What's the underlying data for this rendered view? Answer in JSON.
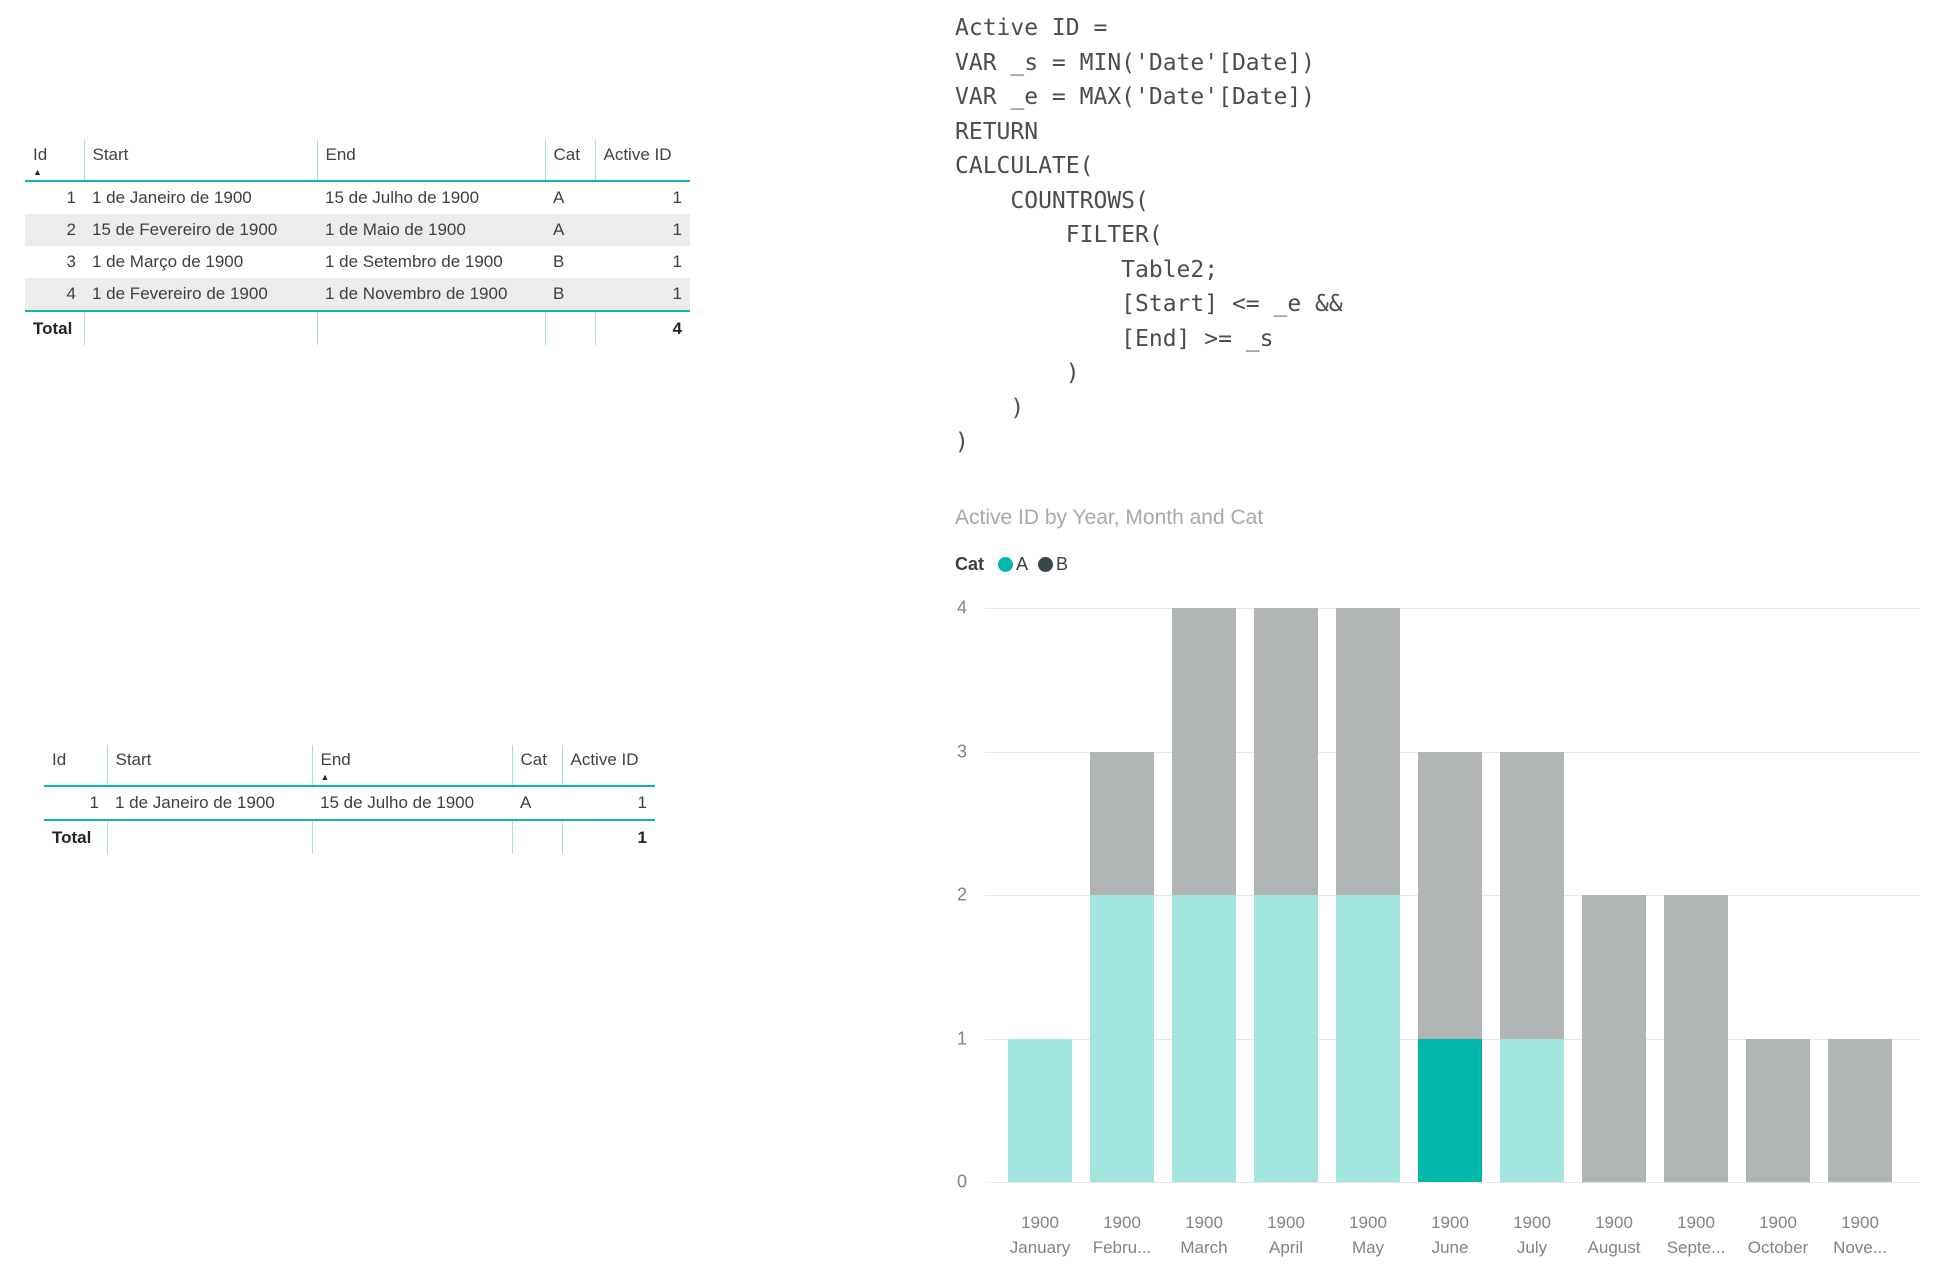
{
  "colors": {
    "accent_teal": "#01B8AA",
    "teal_faded": "#A3E6DF",
    "dark_slate": "#374649",
    "gray_faded": "#B0B4B5",
    "table_rule_teal": "#12B5A8",
    "alt_row_bg": "#ECECEC"
  },
  "table1": {
    "columns": [
      "Id",
      "Start",
      "End",
      "Cat",
      "Active ID"
    ],
    "sort_column": "Id",
    "sort_direction": "ascending",
    "rows": [
      [
        "1",
        "1 de Janeiro de 1900",
        "15 de Julho de 1900",
        "A",
        "1"
      ],
      [
        "2",
        "15 de Fevereiro de 1900",
        "1 de Maio de 1900",
        "A",
        "1"
      ],
      [
        "3",
        "1 de Março de 1900",
        "1 de Setembro de 1900",
        "B",
        "1"
      ],
      [
        "4",
        "1 de Fevereiro de 1900",
        "1 de Novembro de 1900",
        "B",
        "1"
      ]
    ],
    "total_label": "Total",
    "total_value": "4"
  },
  "table2": {
    "columns": [
      "Id",
      "Start",
      "End",
      "Cat",
      "Active ID"
    ],
    "sort_column": "End",
    "sort_direction": "ascending",
    "rows": [
      [
        "1",
        "1 de Janeiro de 1900",
        "15 de Julho de 1900",
        "A",
        "1"
      ]
    ],
    "total_label": "Total",
    "total_value": "1"
  },
  "dax": {
    "lines": [
      "Active ID = ",
      "VAR _s = MIN('Date'[Date])",
      "VAR _e = MAX('Date'[Date])",
      "RETURN",
      "CALCULATE(",
      "    COUNTROWS(",
      "        FILTER(",
      "            Table2;",
      "            [Start] <= _e &&",
      "            [End] >= _s",
      "        )",
      "    )",
      ")"
    ]
  },
  "chart_data": {
    "type": "bar",
    "stacked": true,
    "title": "Active ID by Year, Month and Cat",
    "legend_title": "Cat",
    "legend_position": "top",
    "grid": true,
    "x_year": "1900",
    "categories": [
      "January",
      "Febru...",
      "March",
      "April",
      "May",
      "June",
      "July",
      "August",
      "Septe...",
      "October",
      "Nove..."
    ],
    "series": [
      {
        "name": "A",
        "values": [
          1,
          2,
          2,
          2,
          2,
          1,
          1,
          0,
          0,
          0,
          0
        ],
        "color": "#01B8AA",
        "faded_color": "#A3E6DF"
      },
      {
        "name": "B",
        "values": [
          0,
          1,
          2,
          2,
          2,
          2,
          2,
          2,
          2,
          1,
          1
        ],
        "color": "#374649",
        "faded_color": "#B0B4B5"
      }
    ],
    "highlight": {
      "series": "A",
      "category_index": 5,
      "value": 1
    },
    "xlabel": "",
    "ylabel": "",
    "ylim": [
      0,
      4
    ],
    "yticks": [
      0,
      1,
      2,
      3,
      4
    ]
  }
}
